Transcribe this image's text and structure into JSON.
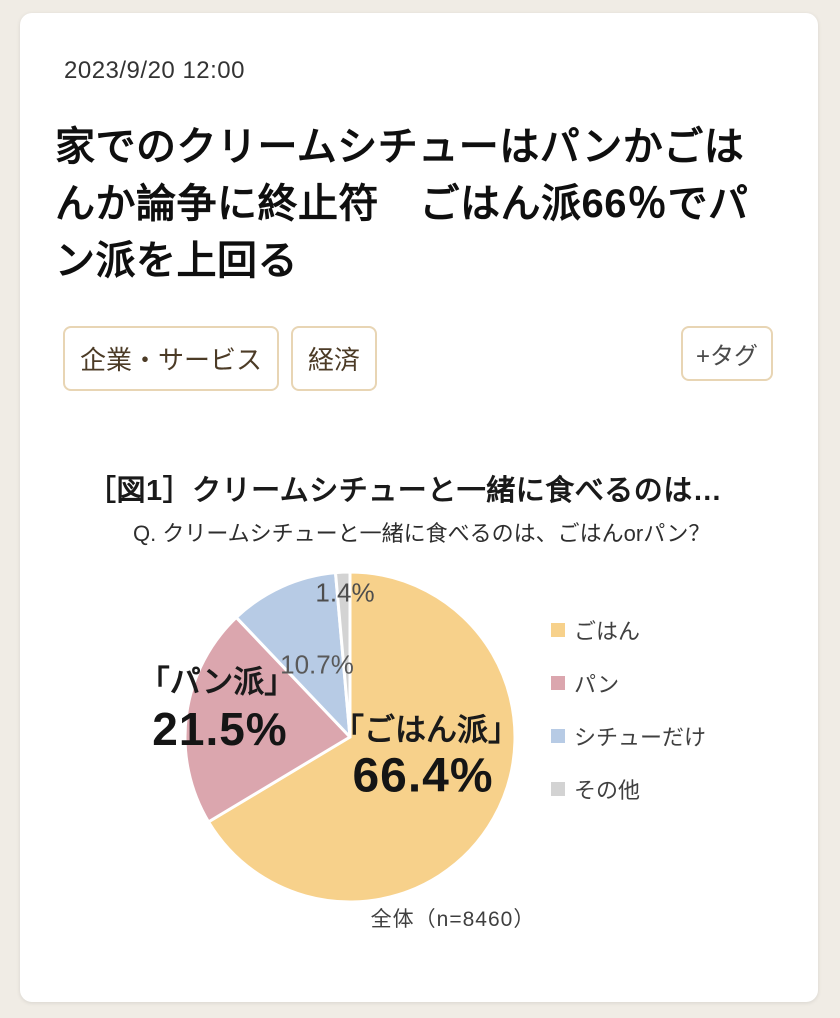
{
  "page": {
    "background": "#f0ece5",
    "card_background": "#ffffff"
  },
  "article": {
    "date": "2023/9/20 12:00",
    "headline": "家でのクリームシチューはパンかごはんか論争に終止符　ごはん派66％でパン派を上回る",
    "headline_lines": [
      "家でのクリームシチューはパンかごは",
      "んか論争に終止符　ごはん派66％でパ",
      "ン派を上回る"
    ],
    "tags": [
      {
        "label": "企業・サービス"
      },
      {
        "label": "経済"
      }
    ],
    "add_tag_label": "+タグ",
    "tag_border_color": "#e8d5b4",
    "tag_text_color": "#4c3b26"
  },
  "chart_data": {
    "type": "pie",
    "title": "［図1］クリームシチューと一緒に食べるのは…",
    "question": "Q. クリームシチューと一緒に食べるのは、ごはんorパン？",
    "sample_caption": "全体（n=8460）",
    "start_angle": "12-oclock",
    "direction": "clockwise",
    "legend_position": "right",
    "slices": [
      {
        "label": "ごはん",
        "callout": "「ごはん派」",
        "value": 66.4,
        "pct_label": "66.4%",
        "color": "#f7d18b"
      },
      {
        "label": "パン",
        "callout": "「パン派」",
        "value": 21.5,
        "pct_label": "21.5%",
        "color": "#dba6ae"
      },
      {
        "label": "シチューだけ",
        "value": 10.7,
        "pct_label": "10.7%",
        "color": "#b7cbe5"
      },
      {
        "label": "その他",
        "value": 1.4,
        "pct_label": "1.4%",
        "color": "#d3d3d3"
      }
    ]
  }
}
